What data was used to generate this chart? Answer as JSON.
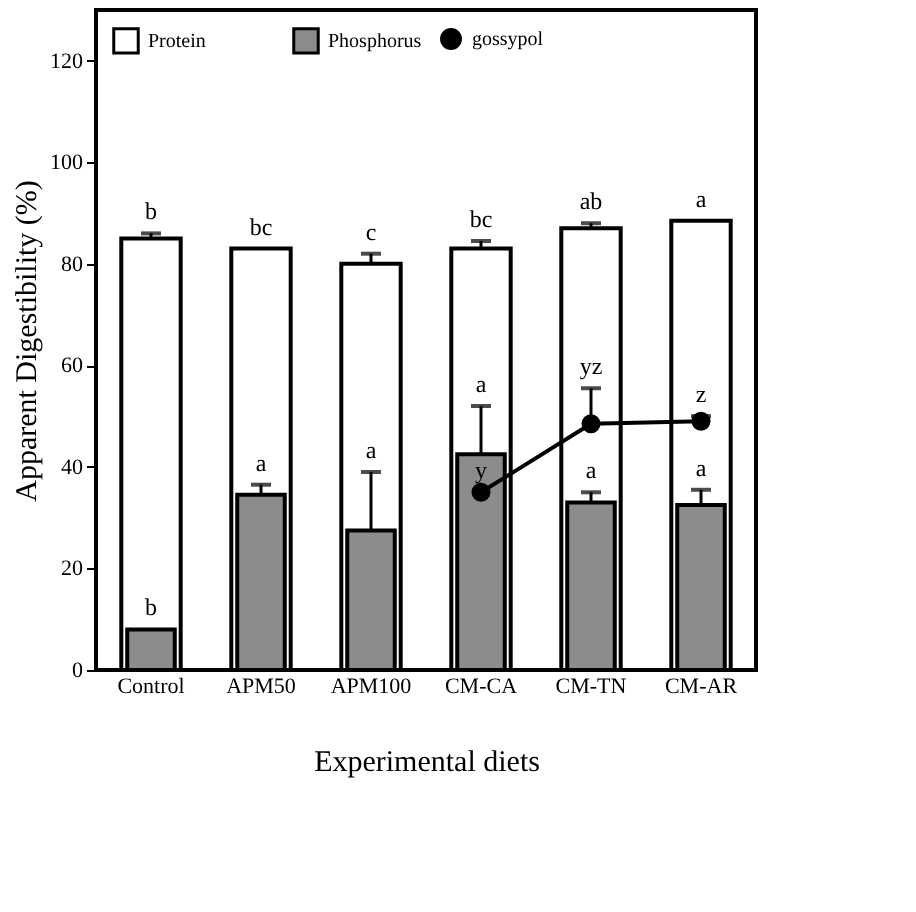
{
  "chart_data": {
    "type": "bar",
    "xlabel": "Experimental diets",
    "ylabel": "Apparent Digestibility (%)",
    "categories": [
      "Control",
      "APM50",
      "APM100",
      "CM-CA",
      "CM-TN",
      "CM-AR"
    ],
    "series": [
      {
        "name": "Protein",
        "color": "#ffffff",
        "values": [
          85,
          83,
          80,
          83,
          87,
          88.5
        ],
        "errors": [
          [
            85,
            86
          ],
          null,
          [
            80,
            82
          ],
          [
            83,
            84.5
          ],
          [
            87,
            88
          ],
          null
        ]
      },
      {
        "name": "Phosphorus",
        "color": "#8c8c8c",
        "values": [
          8,
          34.5,
          27.5,
          42.5,
          33,
          32.5
        ],
        "errors": [
          null,
          [
            34.5,
            36.5
          ],
          [
            27.5,
            39
          ],
          [
            42.5,
            52
          ],
          [
            33,
            35
          ],
          [
            32.5,
            35.5
          ]
        ]
      },
      {
        "name": "gossypol",
        "type": "line",
        "color": "#000000",
        "marker": "circle",
        "values": [
          null,
          null,
          null,
          35,
          48.5,
          49
        ],
        "errors": [
          null,
          null,
          null,
          null,
          [
            48.5,
            55.5
          ],
          [
            49,
            50
          ]
        ]
      }
    ],
    "ylim": [
      0,
      130
    ],
    "yticks": [
      0,
      20,
      40,
      60,
      80,
      100,
      120
    ],
    "grid": false,
    "legend": "top",
    "annotations": [
      {
        "text": "b",
        "x": "Control",
        "y": 86
      },
      {
        "text": "bc",
        "x": "APM50",
        "y": 83
      },
      {
        "text": "c",
        "x": "APM100",
        "y": 82
      },
      {
        "text": "bc",
        "x": "CM-CA",
        "y": 84.5
      },
      {
        "text": "ab",
        "x": "CM-TN",
        "y": 88
      },
      {
        "text": "a",
        "x": "CM-AR",
        "y": 88.5
      },
      {
        "text": "b",
        "x": "Control",
        "y": 8
      },
      {
        "text": "a",
        "x": "APM50",
        "y": 36.5
      },
      {
        "text": "a",
        "x": "APM100",
        "y": 39
      },
      {
        "text": "a",
        "x": "CM-CA",
        "y": 52
      },
      {
        "text": "a",
        "x": "CM-TN",
        "y": 35
      },
      {
        "text": "a",
        "x": "CM-AR",
        "y": 35.5
      },
      {
        "text": "y",
        "x": "CM-CA",
        "y": 35
      },
      {
        "text": "yz",
        "x": "CM-TN",
        "y": 55.5
      },
      {
        "text": "z",
        "x": "CM-AR",
        "y": 50
      }
    ]
  }
}
